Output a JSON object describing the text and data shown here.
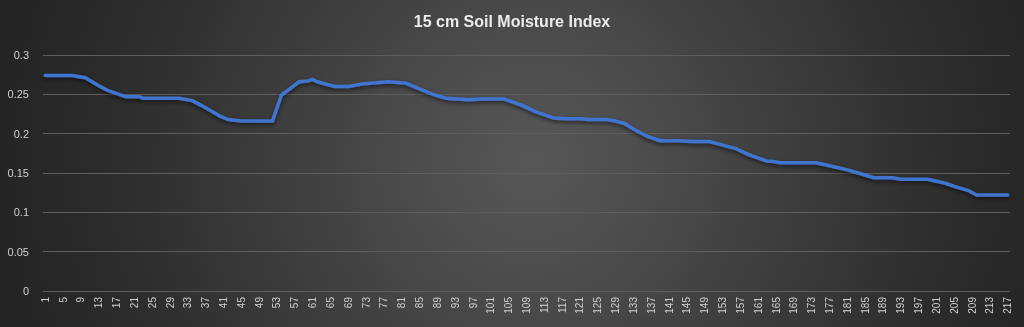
{
  "chart_data": {
    "type": "line",
    "title": "15 cm Soil Moisture Index",
    "x": [
      1,
      7,
      10,
      13,
      15,
      19,
      22,
      23,
      31,
      34,
      36,
      40,
      42,
      45,
      52,
      54,
      58,
      60,
      61,
      62,
      66,
      69,
      72,
      78,
      82,
      85,
      88,
      91,
      96,
      99,
      104,
      105,
      108,
      111,
      115,
      118,
      121,
      123,
      127,
      129,
      131,
      133,
      136,
      139,
      143,
      146,
      150,
      152,
      156,
      159,
      163,
      164,
      166,
      174,
      178,
      181,
      184,
      187,
      191,
      193,
      199,
      203,
      205,
      208,
      210,
      217
    ],
    "series": [
      {
        "color": "#3f74cf",
        "values": [
          0.274,
          0.274,
          0.271,
          0.261,
          0.255,
          0.247,
          0.247,
          0.245,
          0.245,
          0.242,
          0.236,
          0.223,
          0.218,
          0.216,
          0.216,
          0.249,
          0.266,
          0.267,
          0.269,
          0.266,
          0.26,
          0.26,
          0.263,
          0.266,
          0.264,
          0.257,
          0.25,
          0.245,
          0.243,
          0.244,
          0.244,
          0.242,
          0.236,
          0.228,
          0.22,
          0.219,
          0.219,
          0.218,
          0.218,
          0.216,
          0.213,
          0.206,
          0.197,
          0.191,
          0.191,
          0.19,
          0.19,
          0.187,
          0.181,
          0.173,
          0.165,
          0.165,
          0.163,
          0.163,
          0.158,
          0.154,
          0.149,
          0.144,
          0.144,
          0.142,
          0.142,
          0.137,
          0.133,
          0.128,
          0.122,
          0.122
        ]
      }
    ],
    "xlim": [
      0.5,
      217.5
    ],
    "xticks": [
      1,
      5,
      9,
      13,
      17,
      21,
      25,
      29,
      33,
      37,
      41,
      45,
      49,
      53,
      57,
      61,
      65,
      69,
      73,
      77,
      81,
      85,
      89,
      93,
      97,
      101,
      105,
      109,
      113,
      117,
      121,
      125,
      129,
      133,
      137,
      141,
      145,
      149,
      153,
      157,
      161,
      165,
      169,
      173,
      177,
      181,
      185,
      189,
      193,
      197,
      201,
      205,
      209,
      213,
      217
    ],
    "ylim": [
      0,
      0.3
    ],
    "yticks": [
      0,
      0.05,
      0.1,
      0.15,
      0.2,
      0.25,
      0.3
    ],
    "grid": "y",
    "marker": "none",
    "line_style": "solid"
  }
}
